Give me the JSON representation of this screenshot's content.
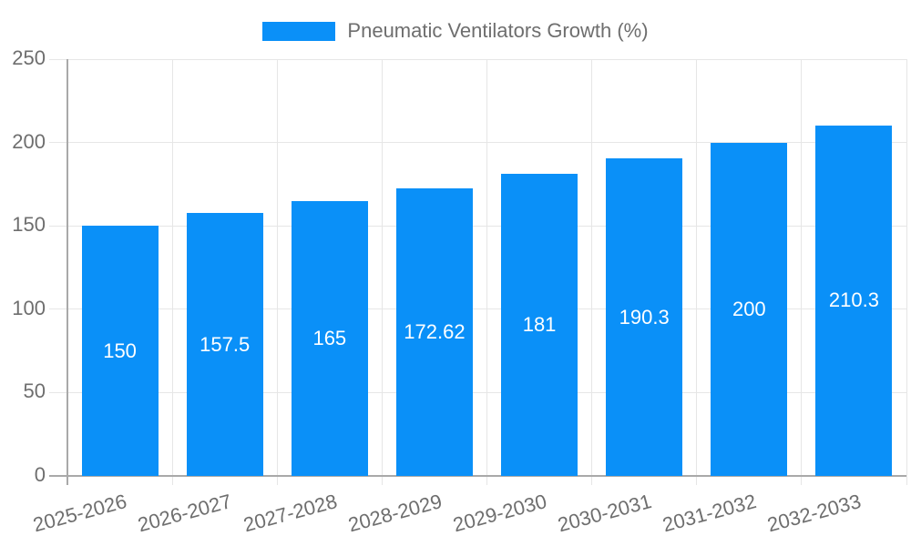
{
  "chart_data": {
    "type": "bar",
    "title": "",
    "legend": "Pneumatic Ventilators Growth (%)",
    "legend_position": "top-center",
    "categories": [
      "2025-2026",
      "2026-2027",
      "2027-2028",
      "2028-2029",
      "2029-2030",
      "2030-2031",
      "2031-2032",
      "2032-2033"
    ],
    "values": [
      150,
      157.5,
      165,
      172.62,
      181,
      190.3,
      200,
      210.3
    ],
    "value_labels": [
      "150",
      "157.5",
      "165",
      "172.62",
      "181",
      "190.3",
      "200",
      "210.3"
    ],
    "xlabel": "",
    "ylabel": "",
    "ylim": [
      0,
      250
    ],
    "yticks": [
      0,
      50,
      100,
      150,
      200,
      250
    ],
    "grid": true,
    "x_label_rotation_deg": -15,
    "colors": {
      "bar": "#0a90f8",
      "bar_label": "#ffffff",
      "grid": "#e6e6e6",
      "axis": "#a9a9a9",
      "text": "#6e6e6e",
      "background": "#ffffff"
    }
  }
}
